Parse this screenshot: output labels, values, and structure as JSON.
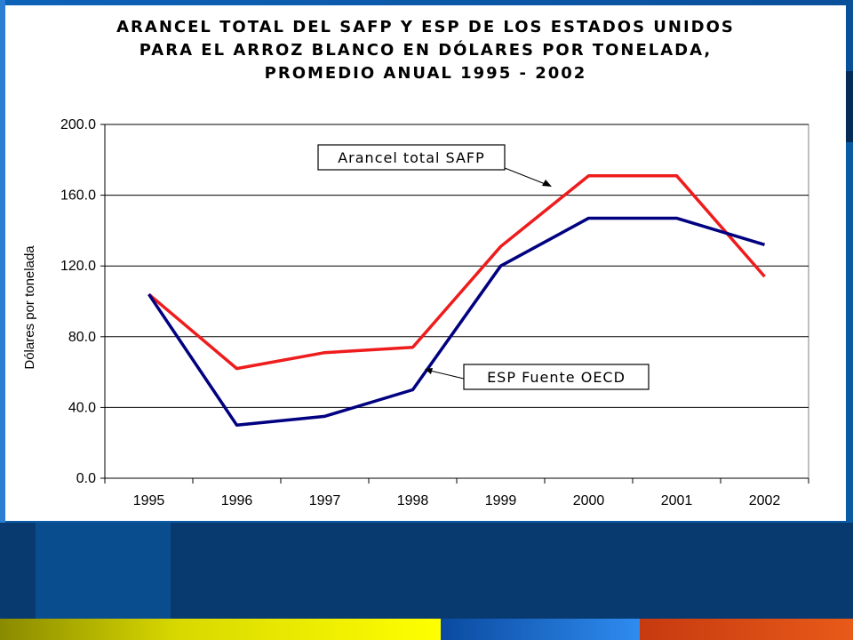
{
  "colors": {
    "safp": "#ee1c1c",
    "esp": "#000080",
    "grid": "#000000"
  },
  "chart_data": {
    "type": "line",
    "title_lines": [
      "ARANCEL TOTAL DEL SAFP Y ESP DE LOS ESTADOS UNIDOS",
      "PARA EL ARROZ BLANCO EN DÓLARES POR TONELADA,",
      "PROMEDIO ANUAL 1995 - 2002"
    ],
    "ylabel": "Dólares por tonelada",
    "xlabel": "",
    "categories": [
      "1995",
      "1996",
      "1997",
      "1998",
      "1999",
      "2000",
      "2001",
      "2002"
    ],
    "ylim": [
      0,
      200
    ],
    "yticks": [
      "0.0",
      "40.0",
      "80.0",
      "120.0",
      "160.0",
      "200.0"
    ],
    "grid": "horizontal",
    "series": [
      {
        "name": "Arancel total SAFP",
        "values": [
          104,
          62,
          71,
          74,
          131,
          171,
          171,
          114
        ]
      },
      {
        "name": "ESP Fuente OECD",
        "values": [
          104,
          30,
          35,
          50,
          120,
          147,
          147,
          132
        ]
      }
    ]
  }
}
